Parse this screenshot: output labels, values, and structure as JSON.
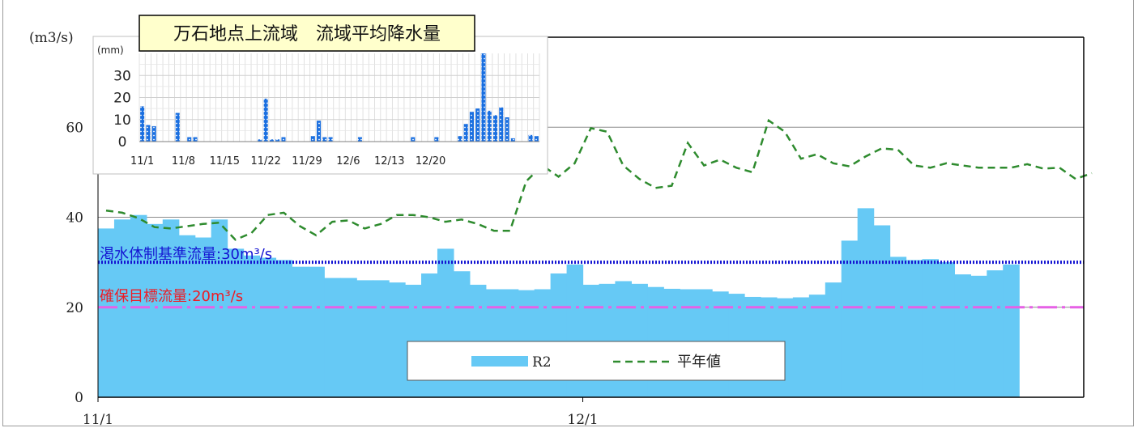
{
  "chart_data": [
    {
      "type": "bar",
      "ylabel": "(m3/s)",
      "ylim": [
        0,
        80
      ],
      "yticks": [
        "0",
        "20",
        "40",
        "60"
      ],
      "xticks": [
        {
          "day": 0,
          "label": "11/1"
        },
        {
          "day": 30,
          "label": "12/1"
        }
      ],
      "xlim_days": [
        0,
        61
      ],
      "grid": true,
      "series": [
        {
          "name": "R2",
          "kind": "bar",
          "color": "#66c9f5",
          "values": [
            37.5,
            39.5,
            40.5,
            38.5,
            39.5,
            36,
            35.5,
            39.5,
            33,
            31.5,
            31,
            30.5,
            29,
            29,
            26.5,
            26.5,
            26,
            26,
            25.5,
            25,
            27.5,
            33,
            28,
            25,
            24,
            24,
            23.8,
            24,
            27.5,
            29.5,
            25,
            25.2,
            25.8,
            25.2,
            24.5,
            24.1,
            24,
            24,
            23.5,
            23,
            22.3,
            22.2,
            22,
            22.2,
            22.8,
            25.5,
            34.8,
            42,
            38.2,
            31.2,
            30.5,
            30.7,
            30,
            27.3,
            27,
            28.2,
            29.5
          ]
        },
        {
          "name": "平年値",
          "kind": "line",
          "color": "#2e8b2e",
          "values": [
            41.5,
            41,
            39.8,
            37.8,
            37.5,
            38,
            38.5,
            38.8,
            35,
            36.5,
            40.5,
            41,
            38,
            36,
            39,
            39.3,
            37.5,
            38.5,
            40.5,
            40.5,
            40,
            39,
            39.5,
            38.5,
            37,
            37,
            48,
            51.5,
            49,
            52,
            59.8,
            59,
            51.5,
            48.5,
            46.5,
            47,
            56.5,
            51.5,
            52.8,
            51,
            50,
            61.5,
            59,
            53,
            54,
            52,
            51.3,
            53.5,
            55.3,
            55,
            51.5,
            51,
            52,
            51.5,
            51,
            51,
            51,
            51.8,
            50.8,
            51,
            48.5,
            49.8
          ]
        }
      ],
      "hlines": [
        {
          "value": 30,
          "label": "渇水体制基準流量:30m³/s",
          "color": "#1414d2"
        },
        {
          "value": 20,
          "label": "確保目標流量:20m³/s",
          "color": "#ee1c25",
          "line_color": "#e661e6"
        }
      ],
      "legend": "bottom-center"
    },
    {
      "type": "bar",
      "title": "万石地点上流域　流域平均降水量",
      "ylabel": "(mm)",
      "ylim": [
        0,
        40
      ],
      "yticks": [
        "0",
        "10",
        "20",
        "30"
      ],
      "xticks": [
        {
          "day": 0,
          "label": "11/1"
        },
        {
          "day": 7,
          "label": "11/8"
        },
        {
          "day": 14,
          "label": "11/15"
        },
        {
          "day": 21,
          "label": "11/22"
        },
        {
          "day": 28,
          "label": "11/29"
        },
        {
          "day": 35,
          "label": "12/6"
        },
        {
          "day": 42,
          "label": "12/13"
        },
        {
          "day": 49,
          "label": "12/20"
        }
      ],
      "grid": true,
      "series": [
        {
          "name": "降水量",
          "color": "#1a6fe0",
          "values": [
            16,
            7.5,
            7,
            0,
            0,
            0,
            13,
            0,
            2,
            2,
            0,
            0,
            0,
            0,
            0,
            0,
            0,
            0,
            0,
            0,
            1,
            19.5,
            1,
            1,
            2,
            0,
            0,
            0,
            0,
            2.5,
            9.5,
            2,
            2,
            0,
            0,
            0,
            0,
            2,
            0,
            0,
            0,
            0,
            0,
            0,
            0,
            0,
            2,
            0,
            0,
            0,
            2,
            0,
            0,
            0,
            2.5,
            8,
            13.5,
            15,
            40,
            14,
            12,
            15.5,
            11,
            1.5,
            0,
            0,
            3,
            2.5
          ]
        }
      ]
    }
  ]
}
